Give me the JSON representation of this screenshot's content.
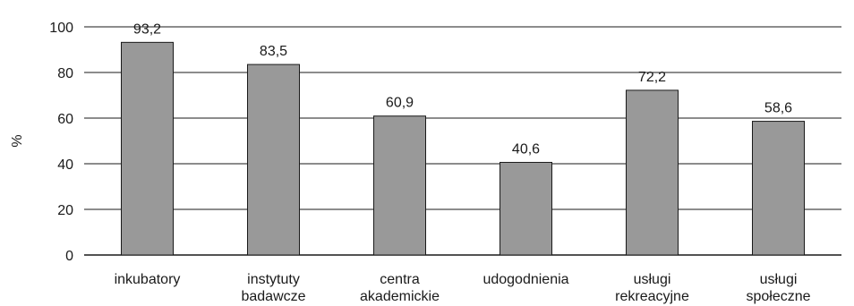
{
  "chart_data": {
    "type": "bar",
    "title": "",
    "xlabel": "",
    "ylabel": "%",
    "ylim": [
      0,
      100
    ],
    "yticks": [
      0,
      20,
      40,
      60,
      80,
      100
    ],
    "grid": true,
    "bar_color": "#999999",
    "categories": [
      [
        "inkubatory"
      ],
      [
        "instytuty",
        "badawcze"
      ],
      [
        "centra",
        "akademickie"
      ],
      [
        "udogodnienia"
      ],
      [
        "usługi",
        "rekreacyjne"
      ],
      [
        "usługi",
        "społeczne"
      ]
    ],
    "values": [
      93.2,
      83.5,
      60.9,
      40.6,
      72.2,
      58.6
    ],
    "value_labels": [
      "93,2",
      "83,5",
      "60,9",
      "40,6",
      "72,2",
      "58,6"
    ]
  }
}
